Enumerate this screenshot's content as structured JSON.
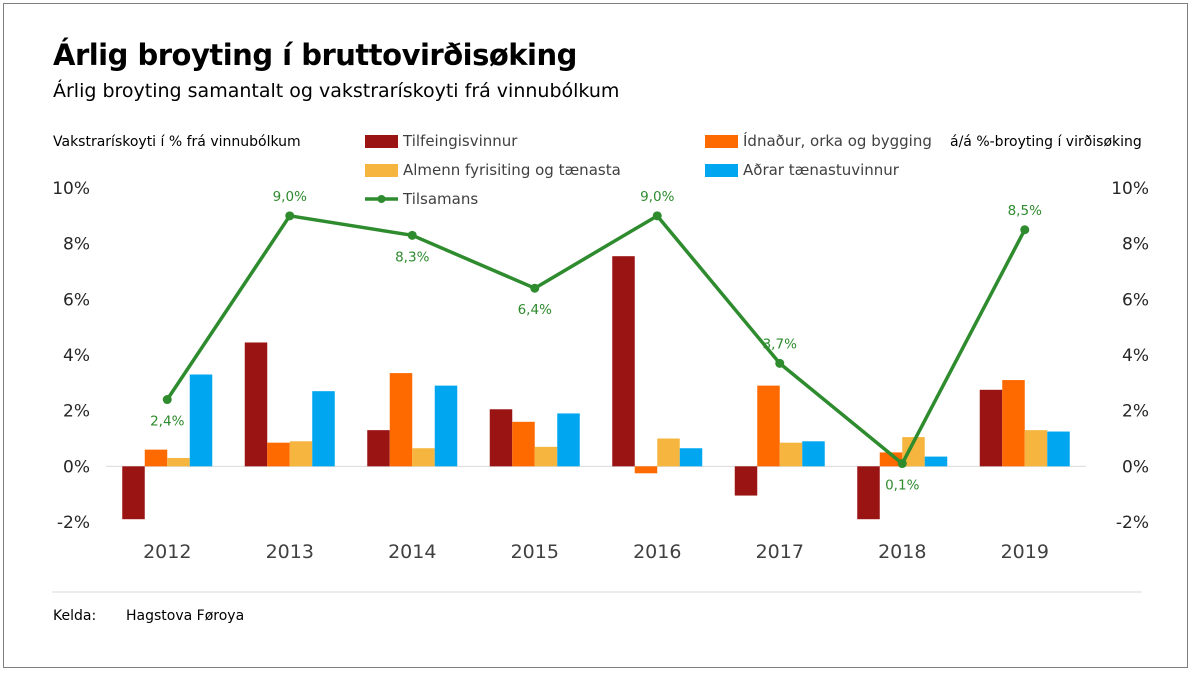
{
  "title": "Árlig broyting í bruttovirðisøking",
  "subtitle": "Árlig broyting samantalt og vakstrarískoyti frá vinnubólkum",
  "left_axis_title": "Vakstrarískoyti í % frá vinnubólkum",
  "right_axis_title": "á/á %-broyting í virðisøking",
  "source_label": "Kelda:",
  "source_value": "Hagstova Føroya",
  "colors": {
    "tilfeingisvinnur": "#9b1414",
    "idnadur": "#ff6a00",
    "almenn": "#f6b53f",
    "adrar": "#00a6f0",
    "tilsamans": "#2e8b2e"
  },
  "chart_data": {
    "type": "bar",
    "categories": [
      "2012",
      "2013",
      "2014",
      "2015",
      "2016",
      "2017",
      "2018",
      "2019"
    ],
    "series": [
      {
        "name": "Tilfeingisvinnur",
        "color_key": "tilfeingisvinnur",
        "values": [
          -1.9,
          4.45,
          1.3,
          2.05,
          7.55,
          -1.05,
          -1.9,
          2.75
        ]
      },
      {
        "name": "Ídnaður, orka og bygging",
        "color_key": "idnadur",
        "values": [
          0.6,
          0.85,
          3.35,
          1.6,
          -0.25,
          2.9,
          0.5,
          3.1
        ]
      },
      {
        "name": "Almenn fyrisiting og tænasta",
        "color_key": "almenn",
        "values": [
          0.3,
          0.9,
          0.65,
          0.7,
          1.0,
          0.85,
          1.05,
          1.3
        ]
      },
      {
        "name": "Aðrar tænastuvinnur",
        "color_key": "adrar",
        "values": [
          3.3,
          2.7,
          2.9,
          1.9,
          0.65,
          0.9,
          0.35,
          1.25
        ]
      }
    ],
    "line": {
      "name": "Tilsamans",
      "color_key": "tilsamans",
      "values": [
        2.4,
        9.0,
        8.3,
        6.4,
        9.0,
        3.7,
        0.1,
        8.5
      ],
      "labels": [
        "2,4%",
        "9,0%",
        "8,3%",
        "6,4%",
        "9,0%",
        "3,7%",
        "0,1%",
        "8,5%"
      ],
      "label_positions": [
        "below",
        "above",
        "below",
        "below",
        "above",
        "above",
        "below",
        "above"
      ]
    },
    "y_left": {
      "min": -2,
      "max": 10,
      "step": 2,
      "tick_labels": [
        "-2%",
        "0%",
        "2%",
        "4%",
        "6%",
        "8%",
        "10%"
      ]
    },
    "y_right": {
      "min": -2,
      "max": 10,
      "step": 2,
      "tick_labels": [
        "-2%",
        "0%",
        "2%",
        "4%",
        "6%",
        "8%",
        "10%"
      ]
    },
    "legend_position": "top",
    "grid": false
  }
}
